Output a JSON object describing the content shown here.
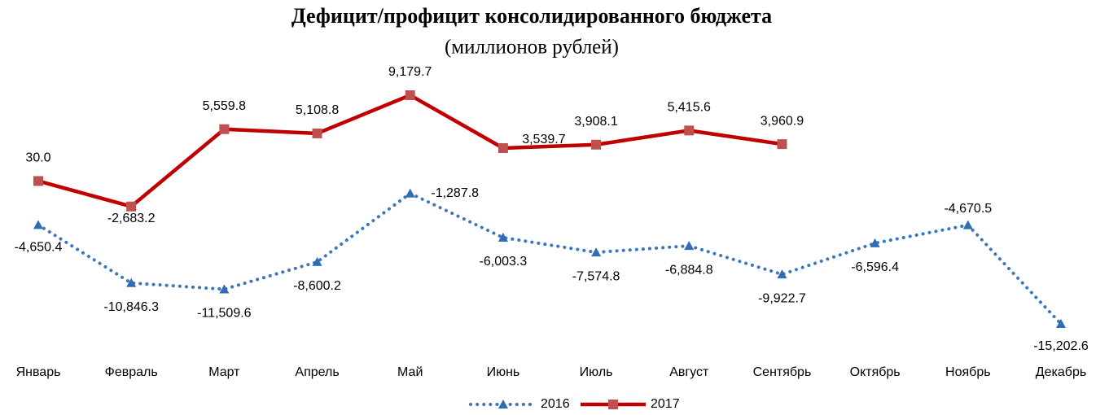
{
  "chart_data": {
    "type": "line",
    "title": "Дефицит/профицит консолидированного бюджета",
    "subtitle": "(миллионов рублей)",
    "categories": [
      "Январь",
      "Февраль",
      "Март",
      "Апрель",
      "Май",
      "Июнь",
      "Июль",
      "Август",
      "Сентябрь",
      "Октябрь",
      "Ноябрь",
      "Декабрь"
    ],
    "series": [
      {
        "name": "2016",
        "color": "#3d75b9",
        "marker_color": "#2e6db4",
        "line_style": "dotted",
        "marker": "triangle",
        "values": [
          -4650.4,
          -10846.3,
          -11509.6,
          -8600.2,
          -1287.8,
          -6003.3,
          -7574.8,
          -6884.8,
          -9922.7,
          -6596.4,
          -4670.5,
          -15202.6
        ],
        "value_labels": [
          "-4,650.4",
          "-10,846.3",
          "-11,509.6",
          "-8,600.2",
          "-1,287.8",
          "-6,003.3",
          "-7,574.8",
          "-6,884.8",
          "-9,922.7",
          "-6,596.4",
          "-4,670.5",
          "-15,202.6"
        ]
      },
      {
        "name": "2017",
        "color": "#c00000",
        "marker_color": "#c0504d",
        "line_style": "solid",
        "marker": "square",
        "values": [
          30.0,
          -2683.2,
          5559.8,
          5108.8,
          9179.7,
          3539.7,
          3908.1,
          5415.6,
          3960.9,
          null,
          null,
          null
        ],
        "value_labels": [
          "30.0",
          "-2,683.2",
          "5,559.8",
          "5,108.8",
          "9,179.7",
          "3,539.7",
          "3,908.1",
          "5,415.6",
          "3,960.9",
          null,
          null,
          null
        ]
      }
    ]
  }
}
